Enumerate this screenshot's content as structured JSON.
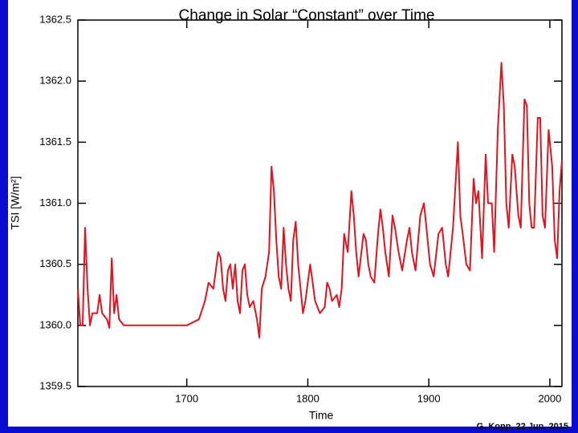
{
  "chart_data": {
    "type": "line",
    "title": "Change in Solar “Constant” over Time",
    "x_label": "Time",
    "y_label": "TSI [W/m²]",
    "credit": "G. Kopp, 22 Jun. 2015",
    "xlim": [
      1610,
      2010
    ],
    "xticks": [
      1700,
      1800,
      1900,
      2000
    ],
    "ylim": [
      1359.5,
      1362.5
    ],
    "yticks": [
      {
        "value": 1359.5,
        "label": "1359.5"
      },
      {
        "value": 1360,
        "label": "1360.0"
      },
      {
        "value": 1360.5,
        "label": "1360.5"
      },
      {
        "value": 1361,
        "label": "1361.0"
      },
      {
        "value": 1361.5,
        "label": "1361.5"
      },
      {
        "value": 1362,
        "label": "1362.0"
      },
      {
        "value": 1362.5,
        "label": "1362.5"
      }
    ],
    "series": [
      {
        "color": "#e0141e",
        "x": [
          1610,
          1612,
          1614,
          1616,
          1618,
          1620,
          1622,
          1626,
          1628,
          1630,
          1634,
          1636,
          1638,
          1640,
          1642,
          1644,
          1648,
          1660,
          1680,
          1700,
          1710,
          1715,
          1718,
          1722,
          1726,
          1728,
          1730,
          1732,
          1734,
          1736,
          1738,
          1740,
          1742,
          1744,
          1746,
          1748,
          1750,
          1752,
          1755,
          1758,
          1760,
          1762,
          1765,
          1768,
          1770,
          1772,
          1774,
          1776,
          1778,
          1780,
          1782,
          1784,
          1786,
          1788,
          1790,
          1792,
          1794,
          1796,
          1798,
          1802,
          1804,
          1806,
          1810,
          1814,
          1816,
          1818,
          1820,
          1824,
          1826,
          1828,
          1830,
          1833,
          1836,
          1838,
          1840,
          1842,
          1846,
          1848,
          1850,
          1852,
          1855,
          1858,
          1860,
          1862,
          1864,
          1867,
          1870,
          1872,
          1875,
          1878,
          1882,
          1884,
          1886,
          1889,
          1893,
          1896,
          1898,
          1901,
          1904,
          1908,
          1911,
          1914,
          1916,
          1920,
          1924,
          1926,
          1928,
          1931,
          1934,
          1937,
          1939,
          1941,
          1944,
          1947,
          1949,
          1952,
          1954,
          1957,
          1960,
          1962,
          1964,
          1966,
          1969,
          1971,
          1974,
          1976,
          1979,
          1981,
          1983,
          1985,
          1987,
          1990,
          1992,
          1994,
          1996,
          1999,
          2002,
          2004,
          2006,
          2008,
          2010
        ],
        "values": [
          1360.3,
          1360.0,
          1360.0,
          1360.8,
          1360.3,
          1360.0,
          1360.1,
          1360.1,
          1360.25,
          1360.1,
          1360.05,
          1359.98,
          1360.55,
          1360.1,
          1360.25,
          1360.05,
          1360.0,
          1360.0,
          1360.0,
          1360.0,
          1360.05,
          1360.2,
          1360.35,
          1360.3,
          1360.6,
          1360.55,
          1360.3,
          1360.2,
          1360.45,
          1360.5,
          1360.3,
          1360.5,
          1360.2,
          1360.1,
          1360.45,
          1360.5,
          1360.25,
          1360.15,
          1360.2,
          1360.05,
          1359.9,
          1360.3,
          1360.4,
          1360.6,
          1361.3,
          1361.1,
          1360.7,
          1360.4,
          1360.3,
          1360.8,
          1360.5,
          1360.3,
          1360.2,
          1360.7,
          1360.85,
          1360.5,
          1360.3,
          1360.1,
          1360.2,
          1360.5,
          1360.35,
          1360.2,
          1360.1,
          1360.15,
          1360.35,
          1360.3,
          1360.2,
          1360.25,
          1360.15,
          1360.3,
          1360.75,
          1360.6,
          1361.1,
          1360.9,
          1360.6,
          1360.4,
          1360.75,
          1360.7,
          1360.5,
          1360.4,
          1360.35,
          1360.75,
          1360.95,
          1360.8,
          1360.6,
          1360.4,
          1360.9,
          1360.8,
          1360.6,
          1360.45,
          1360.7,
          1360.8,
          1360.6,
          1360.45,
          1360.9,
          1361.0,
          1360.8,
          1360.5,
          1360.4,
          1360.75,
          1360.8,
          1360.5,
          1360.4,
          1360.8,
          1361.5,
          1360.9,
          1360.75,
          1360.5,
          1360.45,
          1361.2,
          1361.0,
          1361.1,
          1360.55,
          1361.4,
          1361.0,
          1361.0,
          1360.6,
          1361.6,
          1362.15,
          1361.8,
          1361.0,
          1360.8,
          1361.4,
          1361.3,
          1360.9,
          1360.8,
          1361.85,
          1361.8,
          1361.0,
          1360.8,
          1360.8,
          1361.7,
          1361.7,
          1360.9,
          1360.8,
          1361.6,
          1361.3,
          1360.7,
          1360.55,
          1361.1,
          1361.35
        ]
      }
    ]
  }
}
